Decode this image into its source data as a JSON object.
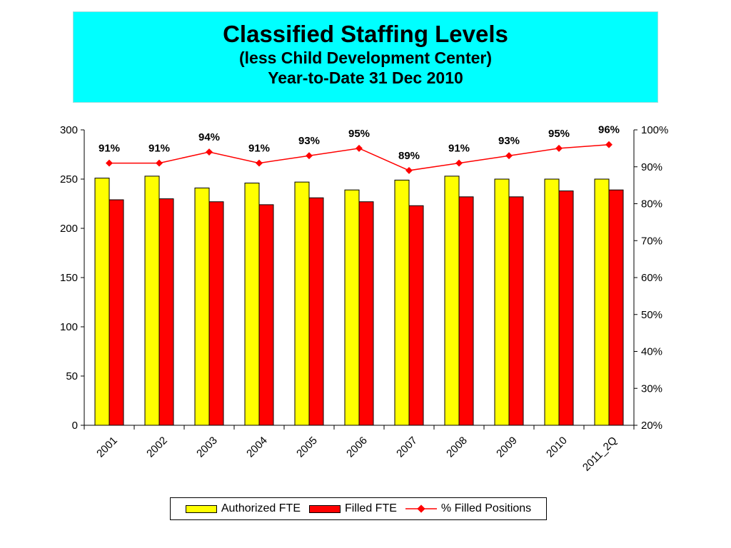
{
  "title": {
    "main": "Classified Staffing Levels",
    "sub1": "(less Child Development Center)",
    "sub2": "Year-to-Date 31 Dec 2010",
    "bg_color": "#00ffff"
  },
  "chart_data": {
    "type": "bar",
    "categories": [
      "2001",
      "2002",
      "2003",
      "2004",
      "2005",
      "2006",
      "2007",
      "2008",
      "2009",
      "2010",
      "2011_2Q"
    ],
    "series": [
      {
        "name": "Authorized FTE",
        "type": "bar",
        "axis": "left",
        "color": "#ffff00",
        "values": [
          251,
          253,
          241,
          246,
          247,
          239,
          249,
          253,
          250,
          250,
          250
        ]
      },
      {
        "name": "Filled FTE",
        "type": "bar",
        "axis": "left",
        "color": "#ff0000",
        "values": [
          229,
          230,
          227,
          224,
          231,
          227,
          223,
          232,
          232,
          238,
          239
        ]
      },
      {
        "name": "% Filled Positions",
        "type": "line",
        "axis": "right",
        "color": "#ff0000",
        "values": [
          91,
          91,
          94,
          91,
          93,
          95,
          89,
          91,
          93,
          95,
          96
        ],
        "labels": [
          "91%",
          "91%",
          "94%",
          "91%",
          "93%",
          "95%",
          "89%",
          "91%",
          "93%",
          "95%",
          "96%"
        ]
      }
    ],
    "y_left": {
      "min": 0,
      "max": 300,
      "ticks": [
        "0",
        "50",
        "100",
        "150",
        "200",
        "250",
        "300"
      ]
    },
    "y_right": {
      "min": 20,
      "max": 100,
      "ticks": [
        "20%",
        "30%",
        "40%",
        "50%",
        "60%",
        "70%",
        "80%",
        "90%",
        "100%"
      ]
    },
    "grid": false,
    "legend_position": "bottom"
  }
}
